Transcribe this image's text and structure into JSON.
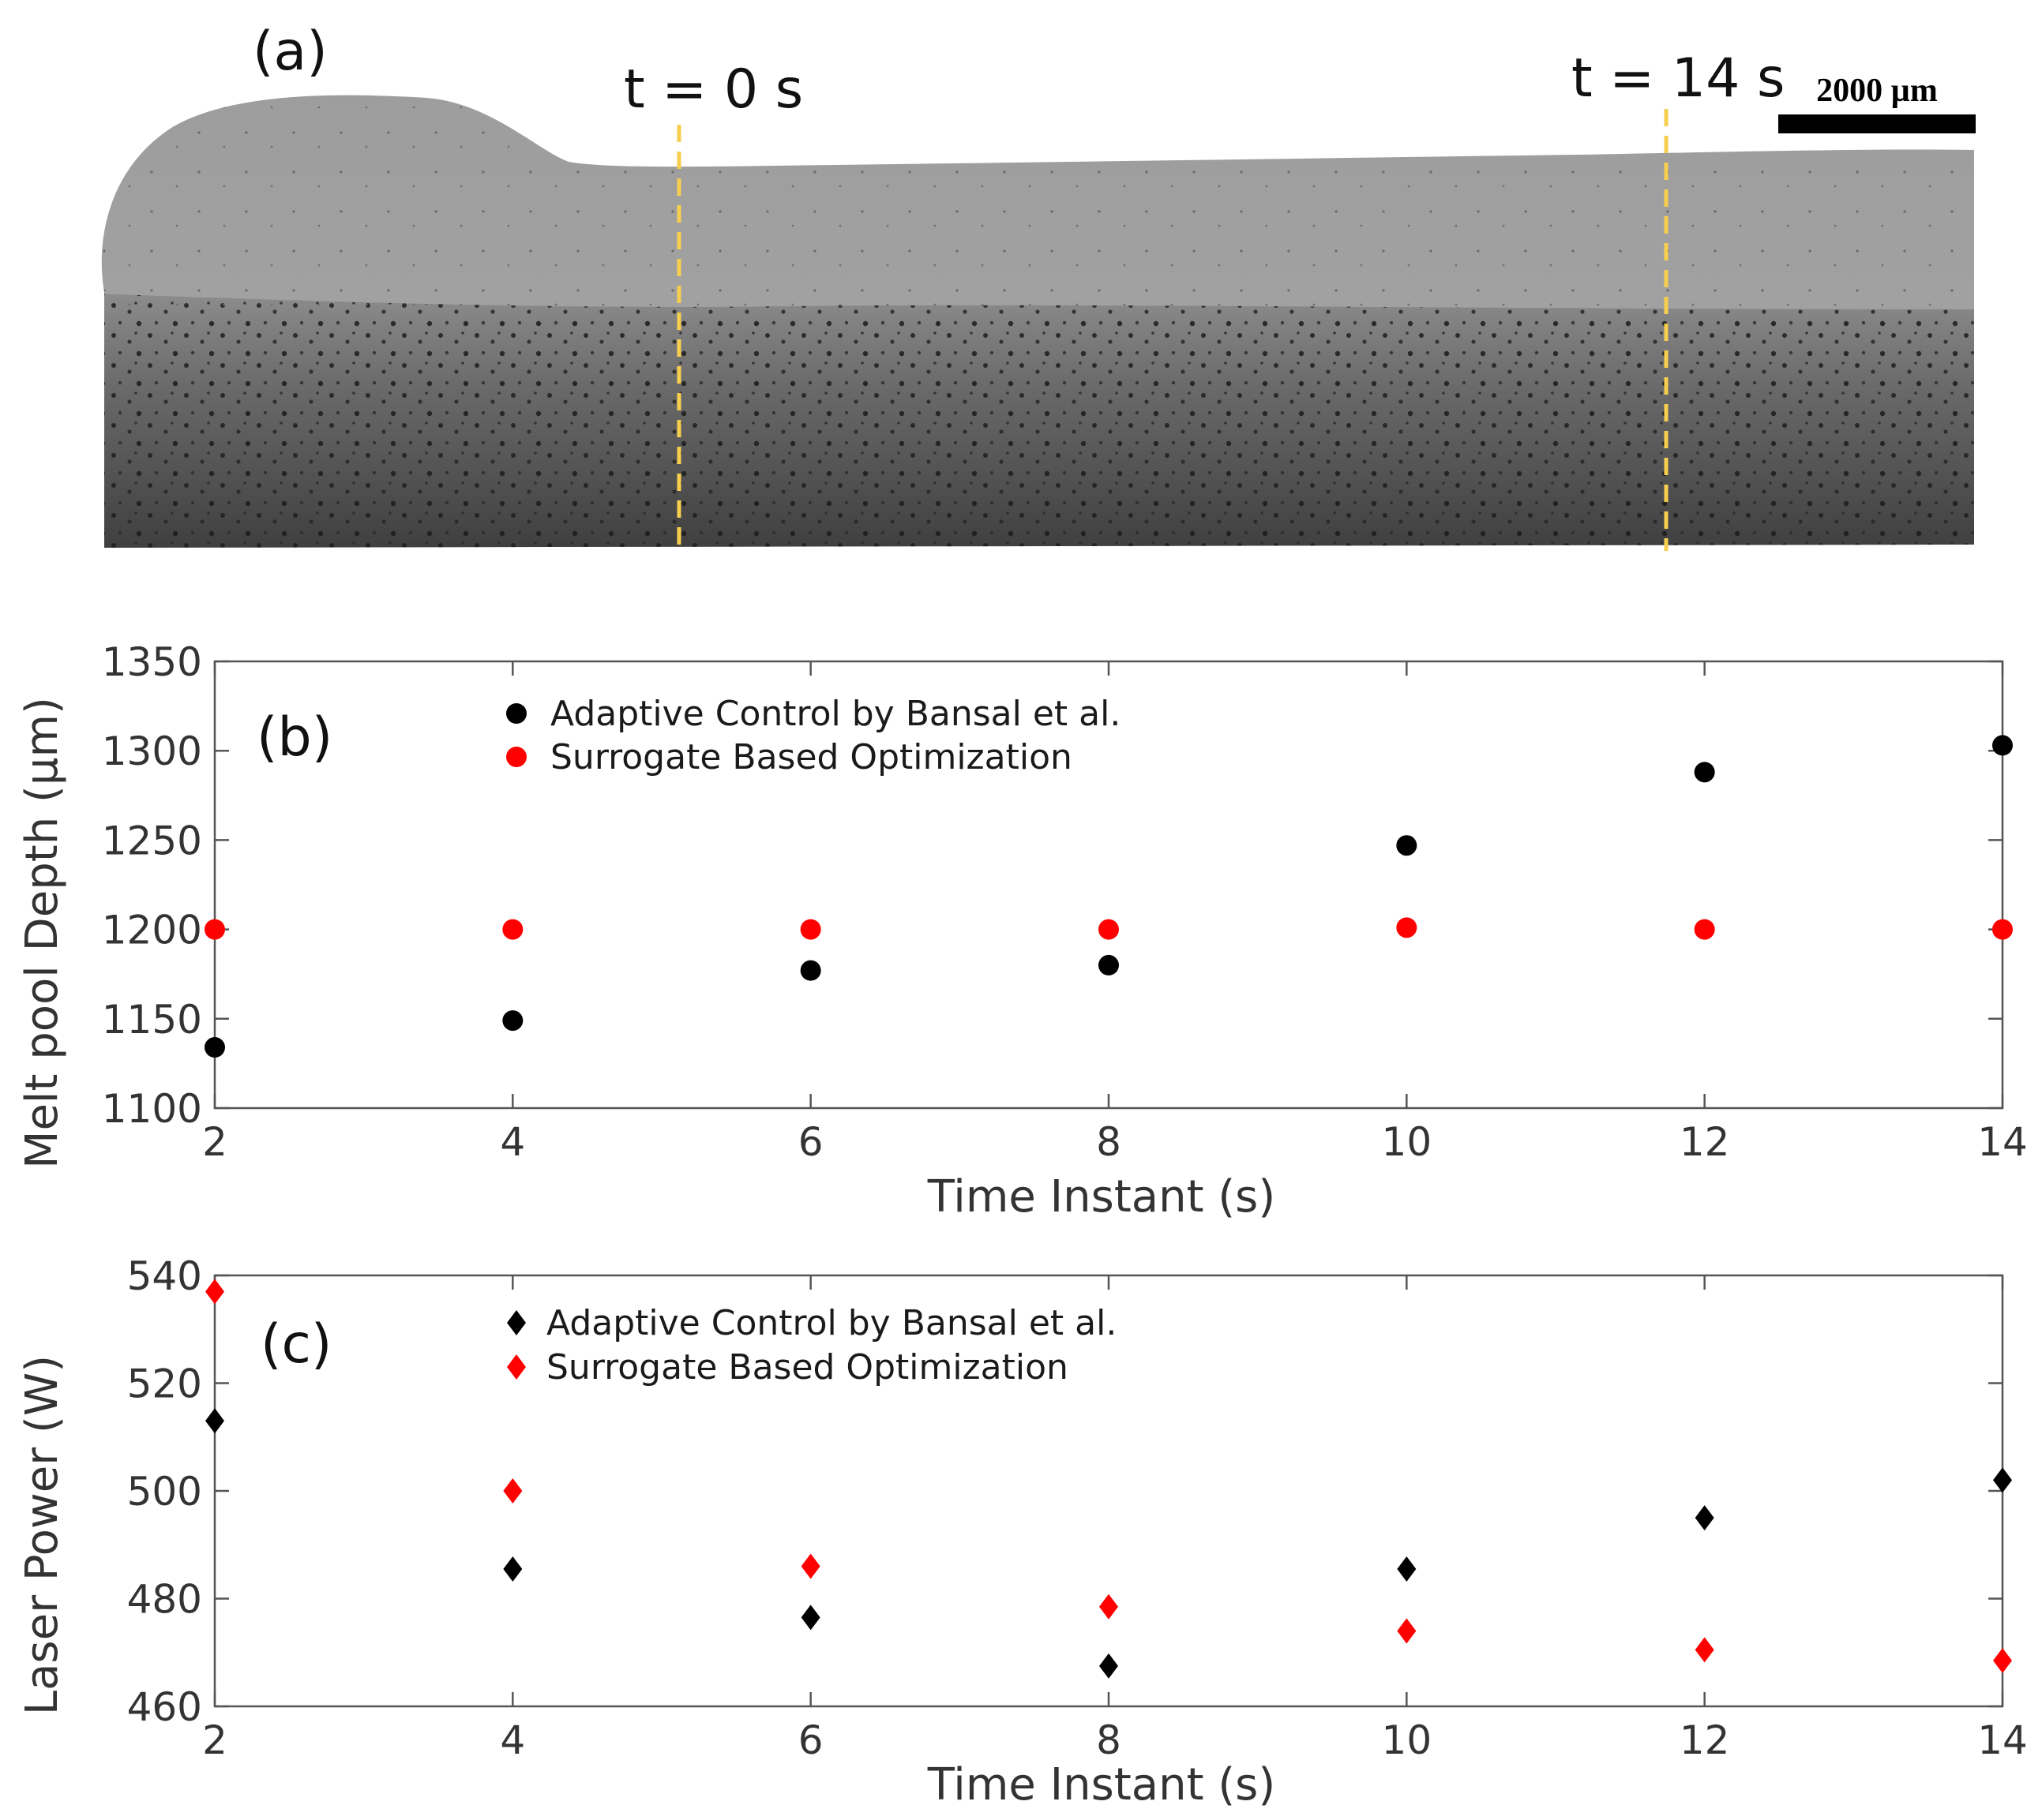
{
  "panel_a": {
    "label": "(a)",
    "marker_start": "t = 0 s",
    "marker_end": "t = 14 s",
    "scale_bar": "2000 µm",
    "marker_color": "#f7cf4f"
  },
  "chart_data": [
    {
      "type": "scatter",
      "panel_label": "(b)",
      "xlabel": "Time Instant (s)",
      "ylabel": "Melt pool Depth (μm)",
      "xlim": [
        2,
        14
      ],
      "ylim": [
        1100,
        1350
      ],
      "x_ticks": [
        2,
        4,
        6,
        8,
        10,
        12,
        14
      ],
      "y_ticks": [
        1100,
        1150,
        1200,
        1250,
        1300,
        1350
      ],
      "grid": false,
      "legend_position": "top-left",
      "marker": "circle",
      "series": [
        {
          "name": "Adaptive Control by Bansal et al.",
          "color": "#000000",
          "x": [
            2,
            4,
            6,
            8,
            10,
            12,
            14
          ],
          "values": [
            1134,
            1149,
            1177,
            1180,
            1247,
            1288,
            1303
          ]
        },
        {
          "name": "Surrogate Based Optimization",
          "color": "#ff0000",
          "x": [
            2,
            4,
            6,
            8,
            10,
            12,
            14
          ],
          "values": [
            1200,
            1200,
            1200,
            1200,
            1201,
            1200,
            1200
          ]
        }
      ]
    },
    {
      "type": "scatter",
      "panel_label": "(c)",
      "xlabel": "Time Instant (s)",
      "ylabel": "Laser Power (W)",
      "xlim": [
        2,
        14
      ],
      "ylim": [
        460,
        540
      ],
      "x_ticks": [
        2,
        4,
        6,
        8,
        10,
        12,
        14
      ],
      "y_ticks": [
        460,
        480,
        500,
        520,
        540
      ],
      "grid": false,
      "legend_position": "top-left",
      "marker": "diamond",
      "series": [
        {
          "name": "Adaptive Control by Bansal et al.",
          "color": "#000000",
          "x": [
            2,
            4,
            6,
            8,
            10,
            12,
            14
          ],
          "values": [
            513,
            485.5,
            476.5,
            467.5,
            485.5,
            495,
            502
          ]
        },
        {
          "name": "Surrogate Based Optimization",
          "color": "#ff0000",
          "x": [
            2,
            4,
            6,
            8,
            10,
            12,
            14
          ],
          "values": [
            537,
            500,
            486,
            478.5,
            474,
            470.5,
            468.5
          ]
        }
      ]
    }
  ]
}
